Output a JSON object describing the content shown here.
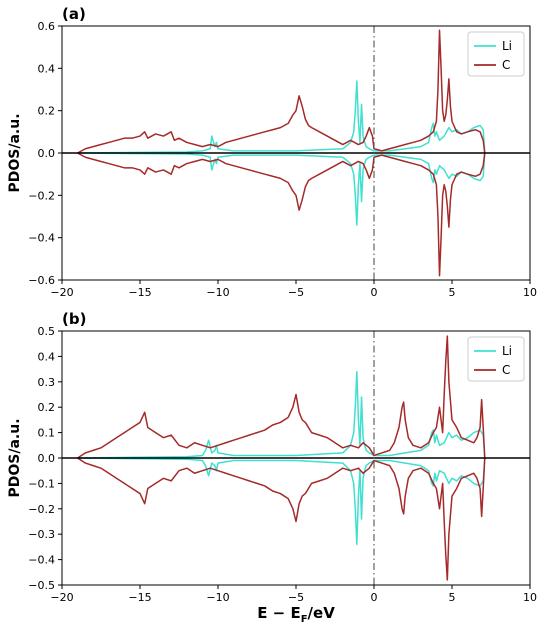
{
  "chart_data": [
    {
      "type": "line",
      "panel_label": "(a)",
      "ylabel": "PDOS/a.u.",
      "xlabel": "",
      "xlim": [
        -20,
        10
      ],
      "ylim": [
        -0.6,
        0.6
      ],
      "xticks": [
        -20,
        -15,
        -10,
        -5,
        0,
        5,
        10
      ],
      "yticks": [
        -0.6,
        -0.4,
        -0.2,
        0.0,
        0.2,
        0.4,
        0.6
      ],
      "yticklabels": [
        "−0.6",
        "−0.4",
        "−0.2",
        "0.0",
        "0.2",
        "0.4",
        "0.6"
      ],
      "fermi_line_x": 0,
      "legend": "top-right",
      "series": [
        {
          "name": "Li",
          "color": "#40e0d0",
          "x": [
            -19,
            -12,
            -11,
            -10.5,
            -10.4,
            -10.2,
            -10.1,
            -10,
            -9,
            -5,
            -2,
            -1.5,
            -1.3,
            -1.2,
            -1.1,
            -1.0,
            -0.9,
            -0.8,
            -0.7,
            -0.6,
            -0.5,
            -0.3,
            0,
            1,
            2,
            3,
            3.5,
            3.7,
            3.8,
            3.9,
            4.0,
            4.2,
            4.5,
            4.8,
            5.0,
            5.3,
            5.6,
            6.0,
            6.4,
            6.8,
            7.0,
            7.1
          ],
          "y": [
            0.0,
            0.005,
            0.01,
            0.02,
            0.08,
            0.03,
            0.05,
            0.02,
            0.01,
            0.01,
            0.02,
            0.05,
            0.1,
            0.2,
            0.34,
            0.15,
            0.05,
            0.23,
            0.08,
            0.05,
            0.03,
            0.02,
            0.01,
            0.01,
            0.02,
            0.03,
            0.05,
            0.12,
            0.14,
            0.08,
            0.1,
            0.06,
            0.08,
            0.12,
            0.1,
            0.11,
            0.09,
            0.1,
            0.12,
            0.13,
            0.11,
            0.0
          ]
        },
        {
          "name": "C",
          "color": "#a52a2a",
          "x": [
            -19,
            -18.5,
            -18,
            -17.5,
            -17,
            -16.5,
            -16,
            -15.5,
            -15,
            -14.7,
            -14.5,
            -14,
            -13.5,
            -13,
            -12.8,
            -12.5,
            -12,
            -11.5,
            -11,
            -10.5,
            -10,
            -9.5,
            -9,
            -8.5,
            -8,
            -7.5,
            -7,
            -6.5,
            -6,
            -5.5,
            -5.2,
            -5,
            -4.8,
            -4.6,
            -4.4,
            -4.2,
            -4,
            -3.5,
            -3,
            -2.5,
            -2,
            -1.5,
            -1,
            -0.7,
            -0.5,
            -0.3,
            -0.1,
            0,
            0.5,
            1,
            1.5,
            2,
            2.5,
            3,
            3.5,
            3.8,
            4.0,
            4.1,
            4.2,
            4.3,
            4.4,
            4.5,
            4.6,
            4.7,
            4.8,
            4.9,
            5.0,
            5.3,
            5.6,
            6.0,
            6.5,
            6.8,
            7.0,
            7.1
          ],
          "y": [
            0.0,
            0.02,
            0.03,
            0.04,
            0.05,
            0.06,
            0.07,
            0.07,
            0.08,
            0.1,
            0.07,
            0.09,
            0.08,
            0.1,
            0.06,
            0.07,
            0.05,
            0.04,
            0.03,
            0.04,
            0.03,
            0.05,
            0.06,
            0.07,
            0.08,
            0.09,
            0.1,
            0.11,
            0.12,
            0.14,
            0.18,
            0.2,
            0.27,
            0.22,
            0.16,
            0.13,
            0.12,
            0.1,
            0.08,
            0.06,
            0.04,
            0.06,
            0.04,
            0.05,
            0.08,
            0.12,
            0.08,
            0.02,
            0.01,
            0.02,
            0.03,
            0.04,
            0.05,
            0.06,
            0.08,
            0.1,
            0.15,
            0.3,
            0.58,
            0.4,
            0.2,
            0.15,
            0.18,
            0.25,
            0.35,
            0.22,
            0.15,
            0.1,
            0.09,
            0.1,
            0.11,
            0.1,
            0.06,
            0.0
          ]
        }
      ]
    },
    {
      "type": "line",
      "panel_label": "(b)",
      "ylabel": "PDOS/a.u.",
      "xlabel": "E − E_F/eV",
      "xlabel_main": "E − E",
      "xlabel_sub": "F",
      "xlabel_tail": "/eV",
      "xlim": [
        -20,
        10
      ],
      "ylim": [
        -0.5,
        0.5
      ],
      "xticks": [
        -20,
        -15,
        -10,
        -5,
        0,
        5,
        10
      ],
      "yticks": [
        -0.5,
        -0.4,
        -0.3,
        -0.2,
        -0.1,
        0.0,
        0.1,
        0.2,
        0.3,
        0.4,
        0.5
      ],
      "yticklabels": [
        "−0.5",
        "−0.4",
        "−0.3",
        "−0.2",
        "−0.1",
        "0.0",
        "0.1",
        "0.2",
        "0.3",
        "0.4",
        "0.5"
      ],
      "fermi_line_x": 0,
      "legend": "top-right",
      "series": [
        {
          "name": "Li",
          "color": "#40e0d0",
          "x": [
            -19,
            -12,
            -11,
            -10.8,
            -10.6,
            -10.4,
            -10.2,
            -10.1,
            -10,
            -9,
            -5,
            -2,
            -1.5,
            -1.3,
            -1.2,
            -1.1,
            -1.0,
            -0.9,
            -0.8,
            -0.7,
            -0.6,
            -0.5,
            -0.3,
            0,
            1,
            2,
            3,
            3.5,
            3.7,
            3.8,
            3.9,
            4.0,
            4.2,
            4.5,
            4.8,
            5.0,
            5.3,
            5.6,
            6.0,
            6.4,
            6.8,
            7.0,
            7.1
          ],
          "y": [
            0.0,
            0.005,
            0.01,
            0.03,
            0.07,
            0.02,
            0.03,
            0.05,
            0.02,
            0.01,
            0.01,
            0.02,
            0.05,
            0.1,
            0.2,
            0.34,
            0.15,
            0.05,
            0.24,
            0.08,
            0.05,
            0.03,
            0.02,
            0.01,
            0.01,
            0.02,
            0.03,
            0.05,
            0.1,
            0.11,
            0.06,
            0.09,
            0.05,
            0.06,
            0.1,
            0.08,
            0.09,
            0.07,
            0.08,
            0.1,
            0.11,
            0.09,
            0.0
          ]
        },
        {
          "name": "C",
          "color": "#a52a2a",
          "x": [
            -19,
            -18.5,
            -18,
            -17.5,
            -17,
            -16.5,
            -16,
            -15.5,
            -15,
            -14.7,
            -14.5,
            -14,
            -13.5,
            -13,
            -12.5,
            -12,
            -11.5,
            -11,
            -10.5,
            -10,
            -9.5,
            -9,
            -8.5,
            -8,
            -7.5,
            -7,
            -6.5,
            -6,
            -5.5,
            -5.2,
            -5,
            -4.8,
            -4.6,
            -4.4,
            -4.2,
            -4,
            -3.5,
            -3,
            -2.5,
            -2,
            -1.5,
            -1,
            -0.7,
            -0.5,
            -0.3,
            -0.1,
            0,
            0.5,
            1,
            1.3,
            1.6,
            1.8,
            1.9,
            2.0,
            2.2,
            2.5,
            3,
            3.5,
            3.8,
            4.0,
            4.2,
            4.4,
            4.5,
            4.6,
            4.7,
            4.8,
            5.0,
            5.3,
            5.6,
            6.0,
            6.4,
            6.6,
            6.8,
            6.9,
            7.0,
            7.1
          ],
          "y": [
            0.0,
            0.02,
            0.03,
            0.04,
            0.06,
            0.08,
            0.1,
            0.12,
            0.14,
            0.18,
            0.12,
            0.1,
            0.08,
            0.09,
            0.05,
            0.04,
            0.06,
            0.05,
            0.04,
            0.05,
            0.06,
            0.07,
            0.08,
            0.09,
            0.1,
            0.11,
            0.13,
            0.14,
            0.16,
            0.2,
            0.25,
            0.18,
            0.15,
            0.14,
            0.12,
            0.1,
            0.09,
            0.08,
            0.06,
            0.04,
            0.05,
            0.04,
            0.06,
            0.05,
            0.04,
            0.02,
            0.01,
            0.02,
            0.03,
            0.06,
            0.12,
            0.2,
            0.22,
            0.15,
            0.08,
            0.05,
            0.04,
            0.06,
            0.1,
            0.12,
            0.2,
            0.1,
            0.25,
            0.38,
            0.48,
            0.3,
            0.15,
            0.12,
            0.08,
            0.07,
            0.06,
            0.08,
            0.12,
            0.23,
            0.12,
            0.0
          ]
        }
      ]
    }
  ]
}
